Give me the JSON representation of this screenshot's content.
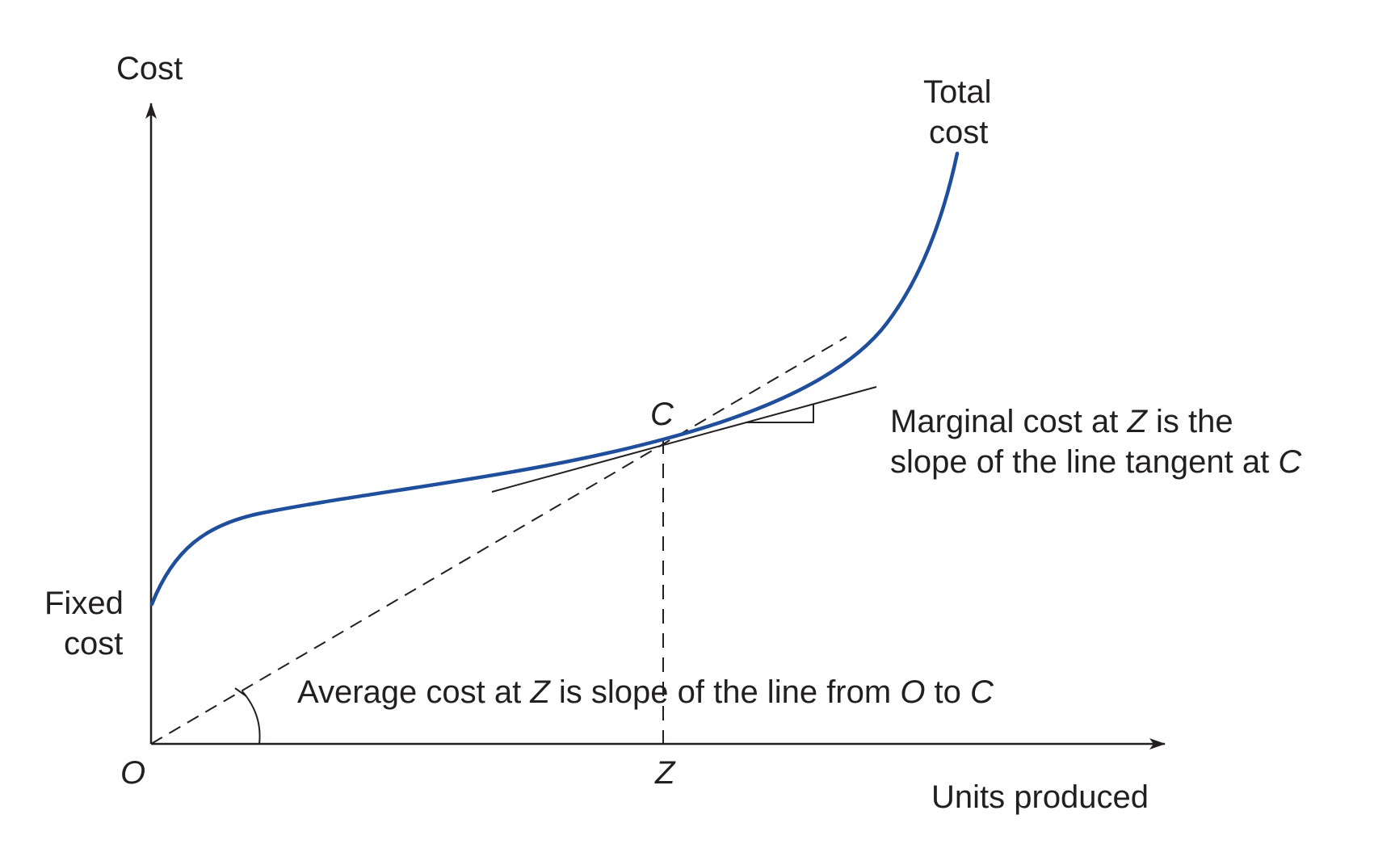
{
  "labels": {
    "y_axis": "Cost",
    "x_axis": "Units produced",
    "total_cost_line1": "Total",
    "total_cost_line2": "cost",
    "fixed_cost_line1": "Fixed",
    "fixed_cost_line2": "cost",
    "origin": "O",
    "point_c": "C",
    "point_z": "Z"
  },
  "annotations": {
    "marginal": {
      "line1_a": "Marginal cost at ",
      "line1_z": "Z",
      "line1_b": " is the",
      "line2_a": "slope of the line tangent at ",
      "line2_c": "C"
    },
    "average": {
      "a": "Average cost at ",
      "z": "Z",
      "b": " is slope of the line from ",
      "o": "O",
      "c": " to ",
      "cc": "C"
    }
  },
  "colors": {
    "curve": "#1f4e9c",
    "ink": "#231f20"
  }
}
